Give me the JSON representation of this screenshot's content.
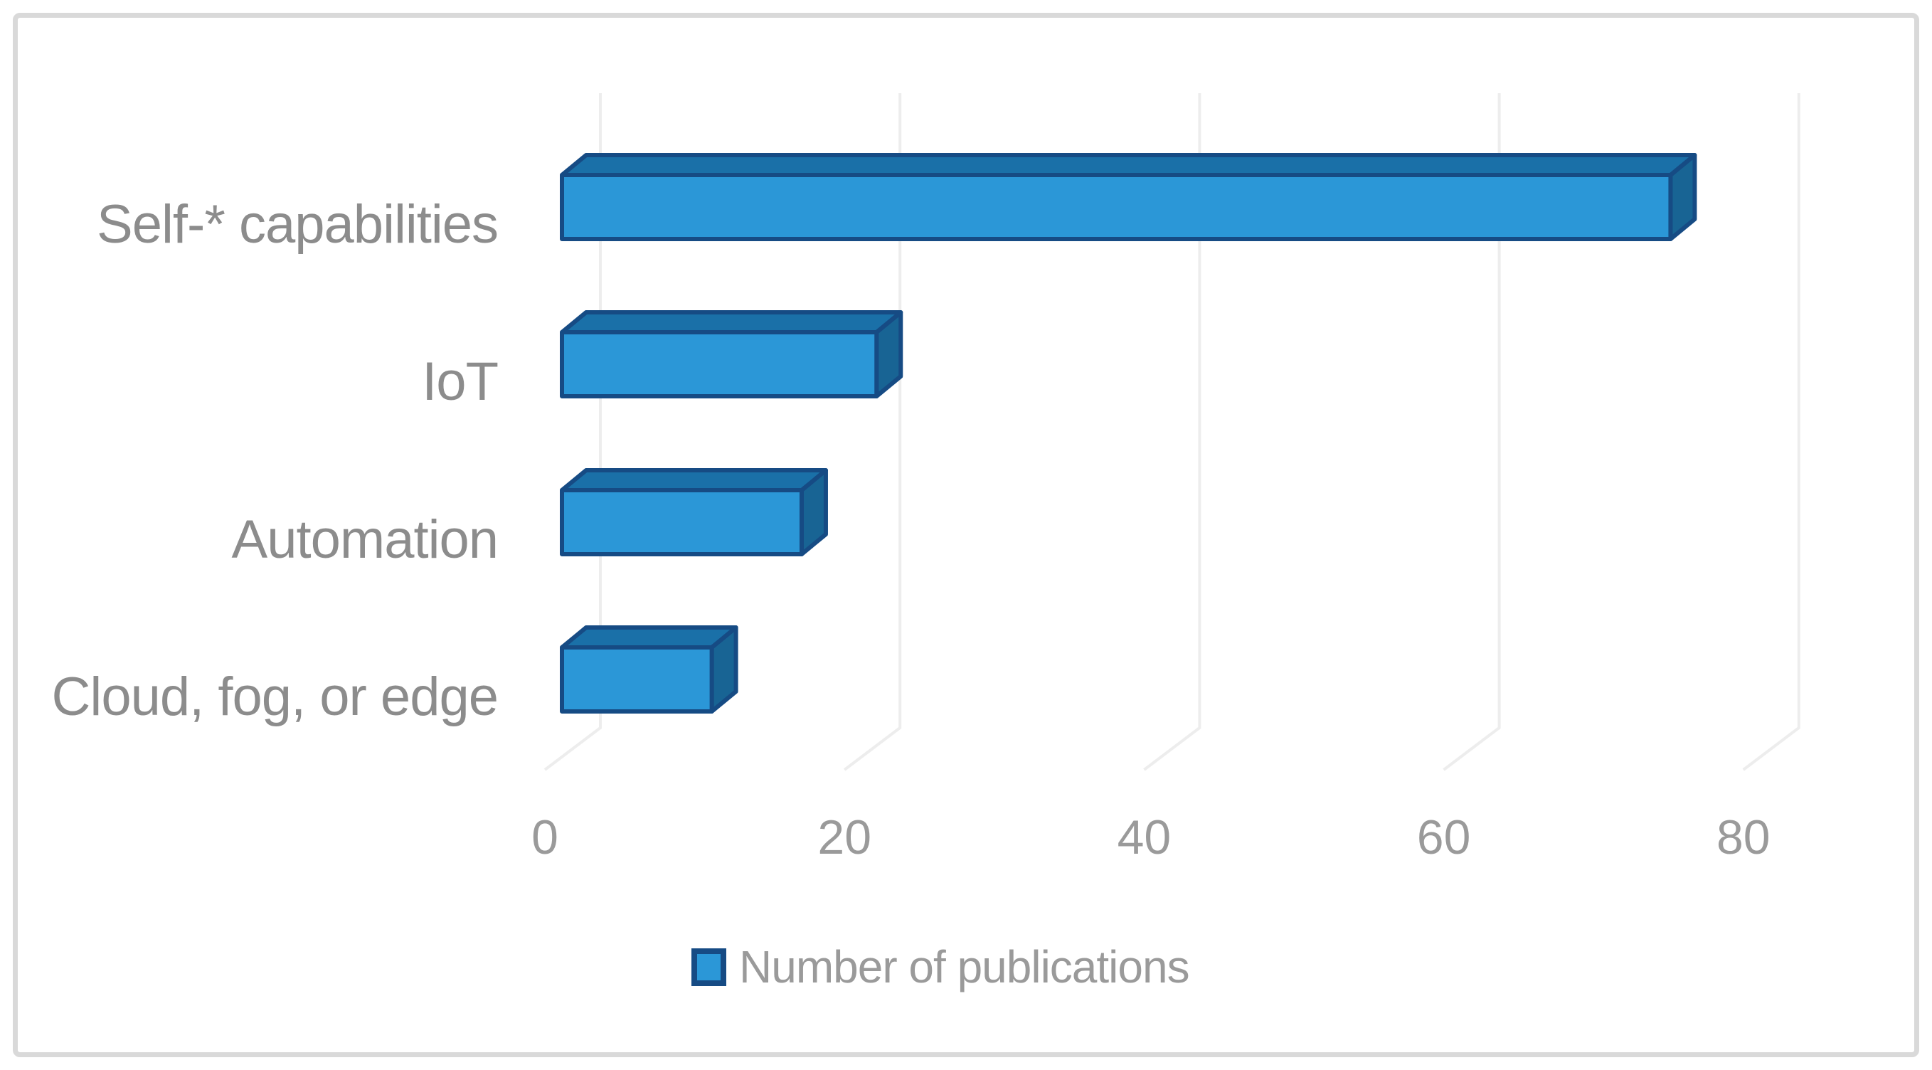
{
  "figure": {
    "background": "#ffffff",
    "border_color": "#d9d9d9"
  },
  "chart_data": {
    "type": "bar",
    "orientation": "horizontal",
    "style": "3d",
    "title": "",
    "xlabel": "",
    "ylabel": "",
    "categories": [
      "Self-* capabilities",
      "IoT",
      "Automation",
      "Cloud, fog, or edge"
    ],
    "series": [
      {
        "name": "Number of publications",
        "values": [
          74,
          21,
          16,
          10
        ]
      }
    ],
    "xlim": [
      0,
      80
    ],
    "xticks": [
      0,
      20,
      40,
      60,
      80
    ],
    "grid": true,
    "legend_position": "bottom",
    "colors": {
      "bar_front": "#2b97d7",
      "bar_top": "#1a70a8",
      "bar_side": "#186494",
      "bar_border": "#164b84",
      "category_label": "#8c8c8c",
      "tick_label": "#9a9a9a",
      "gridline": "#ededed"
    }
  },
  "legend": {
    "label": "Number of publications"
  }
}
